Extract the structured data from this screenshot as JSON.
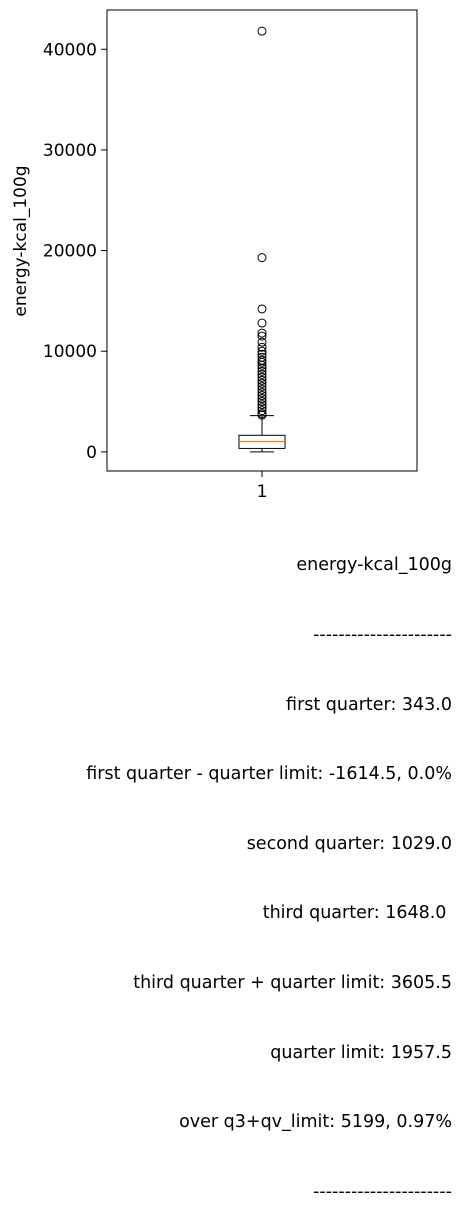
{
  "chart_data": {
    "type": "box",
    "ylabel": "energy-kcal_100g",
    "xticks": [
      "1"
    ],
    "yticks": [
      0,
      10000,
      20000,
      30000,
      40000
    ],
    "ylim": [
      -1900,
      43900
    ],
    "box": {
      "whisker_low": 0,
      "q1": 343.0,
      "median": 1029.0,
      "q3": 1648.0,
      "whisker_high": 3600
    },
    "outliers": [
      41800,
      19300,
      14200,
      12800,
      11800,
      11500,
      10900,
      10400,
      10000,
      9700,
      9400,
      9100,
      8900,
      8600,
      8300,
      8000,
      7700,
      7400,
      7100,
      6800,
      6500,
      6200,
      5900,
      5600,
      5300,
      5000,
      4700,
      4400,
      4100,
      3800,
      3650
    ]
  },
  "stats": {
    "title": "energy-kcal_100g",
    "separator_top": "----------------------",
    "first_quarter": "first quarter: 343.0",
    "lower_limit": "first quarter - quarter limit: -1614.5, 0.0%",
    "second_quarter": "second quarter: 1029.0",
    "third_quarter": "third quarter: 1648.0 ",
    "upper_limit": "third quarter + quarter limit: 3605.5",
    "quarter_limit": "quarter limit: 1957.5",
    "over_limit": "over q3+qv_limit: 5199, 0.97%",
    "separator_bottom": "----------------------"
  },
  "colors": {
    "median": "#ff7f0e",
    "box": "#000000"
  }
}
